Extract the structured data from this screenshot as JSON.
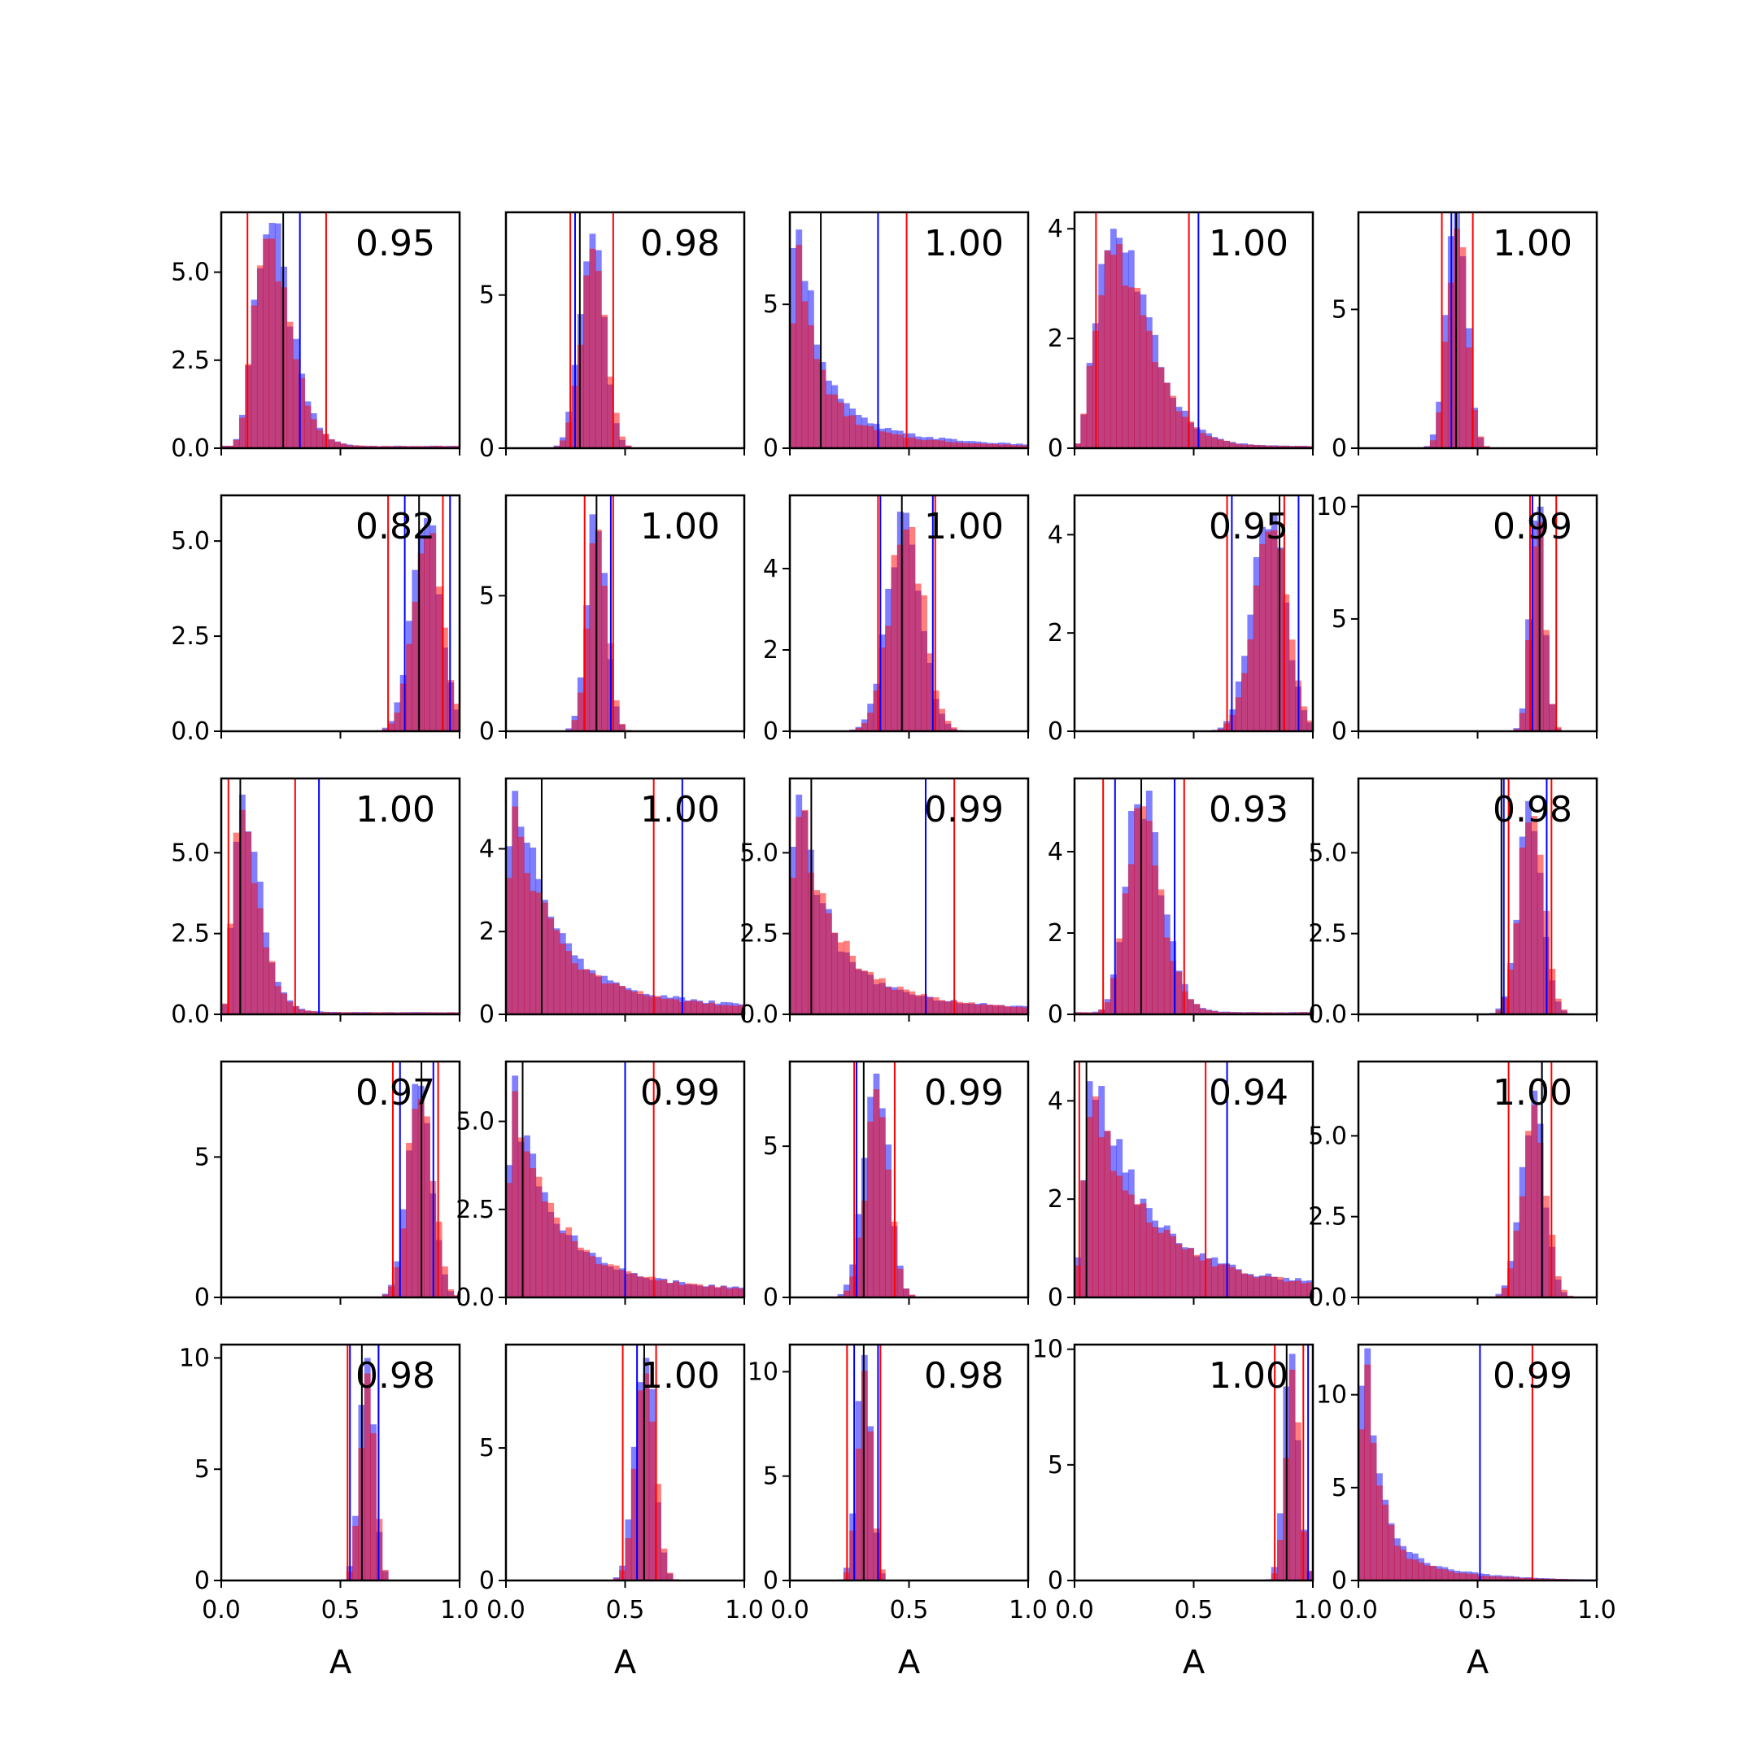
{
  "chart_data": {
    "type": "histogram-grid",
    "rows": 5,
    "cols": 5,
    "xlim": [
      0,
      1
    ],
    "x_ticks": [
      0.0,
      0.5,
      1.0
    ],
    "x_tick_labels": [
      "0.0",
      "0.5",
      "1.0"
    ],
    "xlabel": "A",
    "colors": {
      "blue": "#0000ff",
      "red": "#ff0000",
      "black": "#000000"
    },
    "alpha": 0.5,
    "panels": [
      {
        "score": "0.95",
        "ylim": [
          0,
          6.7
        ],
        "yticks": [
          0,
          2.5,
          5.0
        ],
        "ytick_labels": [
          "0.0",
          "2.5",
          "5.0"
        ],
        "shape": "gamma",
        "mode": 0.2,
        "sd": 0.07,
        "peak": 6.4,
        "lines": {
          "red": [
            0.11,
            0.44
          ],
          "blue": [
            0.33
          ],
          "black": [
            0.26
          ]
        }
      },
      {
        "score": "0.98",
        "ylim": [
          0,
          7.7
        ],
        "yticks": [
          0,
          5
        ],
        "ytick_labels": [
          "0",
          "5"
        ],
        "shape": "normal",
        "mode": 0.36,
        "sd": 0.05,
        "peak": 7.0,
        "lines": {
          "red": [
            0.27,
            0.45
          ],
          "blue": [
            0.29
          ],
          "black": [
            0.31
          ]
        }
      },
      {
        "score": "1.00",
        "ylim": [
          0,
          8.2
        ],
        "yticks": [
          0,
          5
        ],
        "ytick_labels": [
          "0",
          "5"
        ],
        "shape": "decay",
        "mode": 0.02,
        "sd": 0.08,
        "peak": 7.6,
        "lines": {
          "red": [
            0.49
          ],
          "blue": [
            0.37
          ],
          "black": [
            0.13
          ]
        }
      },
      {
        "score": "1.00",
        "ylim": [
          0,
          4.3
        ],
        "yticks": [
          0,
          2,
          4
        ],
        "ytick_labels": [
          "0",
          "2",
          "4"
        ],
        "shape": "gamma",
        "mode": 0.17,
        "sd": 0.1,
        "peak": 4.0,
        "lines": {
          "red": [
            0.09,
            0.48
          ],
          "blue": [
            0.52
          ],
          "black": []
        }
      },
      {
        "score": "1.00",
        "ylim": [
          0,
          8.5
        ],
        "yticks": [
          0,
          5
        ],
        "ytick_labels": [
          "0",
          "5"
        ],
        "shape": "normal",
        "mode": 0.41,
        "sd": 0.04,
        "peak": 8.5,
        "lines": {
          "red": [
            0.35,
            0.48
          ],
          "blue": [
            0.39
          ],
          "black": [
            0.41
          ]
        }
      },
      {
        "score": "0.82",
        "ylim": [
          0,
          6.2
        ],
        "yticks": [
          0,
          2.5,
          5.0
        ],
        "ytick_labels": [
          "0.0",
          "2.5",
          "5.0"
        ],
        "shape": "normal",
        "mode": 0.86,
        "sd": 0.06,
        "peak": 5.6,
        "lines": {
          "red": [
            0.7,
            0.93
          ],
          "blue": [
            0.77,
            0.96
          ],
          "black": [
            0.83
          ]
        }
      },
      {
        "score": "1.00",
        "ylim": [
          0,
          8.7
        ],
        "yticks": [
          0,
          5
        ],
        "ytick_labels": [
          "0",
          "5"
        ],
        "shape": "normal",
        "mode": 0.38,
        "sd": 0.04,
        "peak": 8.0,
        "lines": {
          "red": [
            0.33,
            0.45
          ],
          "blue": [
            0.44
          ],
          "black": [
            0.38
          ]
        }
      },
      {
        "score": "1.00",
        "ylim": [
          0,
          5.8
        ],
        "yticks": [
          0,
          2,
          4
        ],
        "ytick_labels": [
          "0",
          "2",
          "4"
        ],
        "shape": "normal",
        "mode": 0.48,
        "sd": 0.07,
        "peak": 5.4,
        "lines": {
          "red": [
            0.37,
            0.61
          ],
          "blue": [
            0.38,
            0.6
          ],
          "black": [
            0.47
          ]
        }
      },
      {
        "score": "0.95",
        "ylim": [
          0,
          4.8
        ],
        "yticks": [
          0,
          2,
          4
        ],
        "ytick_labels": [
          "0",
          "2",
          "4"
        ],
        "shape": "normal",
        "mode": 0.81,
        "sd": 0.07,
        "peak": 4.4,
        "lines": {
          "red": [
            0.64,
            0.88
          ],
          "blue": [
            0.66,
            0.94
          ],
          "black": [
            0.86
          ]
        }
      },
      {
        "score": "0.99",
        "ylim": [
          0,
          10.5
        ],
        "yticks": [
          0,
          5,
          10
        ],
        "ytick_labels": [
          "0",
          "5",
          "10"
        ],
        "shape": "normal",
        "mode": 0.75,
        "sd": 0.03,
        "peak": 10.0,
        "lines": {
          "red": [
            0.72,
            0.83
          ],
          "blue": [
            0.73
          ],
          "black": [
            0.76
          ]
        }
      },
      {
        "score": "1.00",
        "ylim": [
          0,
          7.3
        ],
        "yticks": [
          0,
          2.5,
          5.0
        ],
        "ytick_labels": [
          "0.0",
          "2.5",
          "5.0"
        ],
        "shape": "gamma",
        "mode": 0.09,
        "sd": 0.05,
        "peak": 6.8,
        "lines": {
          "red": [
            0.03,
            0.31
          ],
          "blue": [
            0.41
          ],
          "black": [
            0.08
          ]
        }
      },
      {
        "score": "1.00",
        "ylim": [
          0,
          5.7
        ],
        "yticks": [
          0,
          2,
          4
        ],
        "ytick_labels": [
          "0",
          "2",
          "4"
        ],
        "shape": "decay",
        "mode": 0.02,
        "sd": 0.14,
        "peak": 5.4,
        "lines": {
          "red": [
            0.62
          ],
          "blue": [
            0.74
          ],
          "black": [
            0.15
          ]
        }
      },
      {
        "score": "0.99",
        "ylim": [
          0,
          7.3
        ],
        "yticks": [
          0.0,
          2.5,
          5.0
        ],
        "ytick_labels": [
          "0.0",
          "2.5",
          "5.0"
        ],
        "shape": "decay",
        "mode": 0.02,
        "sd": 0.12,
        "peak": 6.8,
        "lines": {
          "red": [
            0.69
          ],
          "blue": [
            0.57
          ],
          "black": [
            0.09
          ]
        }
      },
      {
        "score": "0.93",
        "ylim": [
          0,
          5.8
        ],
        "yticks": [
          0,
          2,
          4
        ],
        "ytick_labels": [
          "0",
          "2",
          "4"
        ],
        "shape": "gamma",
        "mode": 0.28,
        "sd": 0.07,
        "peak": 5.5,
        "lines": {
          "red": [
            0.12,
            0.46
          ],
          "blue": [
            0.17,
            0.42
          ],
          "black": [
            0.28
          ]
        }
      },
      {
        "score": "0.98",
        "ylim": [
          0,
          7.3
        ],
        "yticks": [
          0.0,
          2.5,
          5.0
        ],
        "ytick_labels": [
          "0.0",
          "2.5",
          "5.0"
        ],
        "shape": "normal",
        "mode": 0.72,
        "sd": 0.05,
        "peak": 6.6,
        "lines": {
          "red": [
            0.63,
            0.81
          ],
          "blue": [
            0.61,
            0.79
          ],
          "black": [
            0.6
          ]
        }
      },
      {
        "score": "0.97",
        "ylim": [
          0,
          8.4
        ],
        "yticks": [
          0,
          5
        ],
        "ytick_labels": [
          "0",
          "5"
        ],
        "shape": "normal",
        "mode": 0.83,
        "sd": 0.05,
        "peak": 7.6,
        "lines": {
          "red": [
            0.72,
            0.91
          ],
          "blue": [
            0.75,
            0.89
          ],
          "black": [
            0.84
          ]
        }
      },
      {
        "score": "0.99",
        "ylim": [
          0,
          6.7
        ],
        "yticks": [
          0.0,
          2.5,
          5.0
        ],
        "ytick_labels": [
          "0.0",
          "2.5",
          "5.0"
        ],
        "shape": "decay",
        "mode": 0.02,
        "sd": 0.15,
        "peak": 6.3,
        "lines": {
          "red": [
            0.62
          ],
          "blue": [
            0.5
          ],
          "black": [
            0.07
          ]
        }
      },
      {
        "score": "0.99",
        "ylim": [
          0,
          7.8
        ],
        "yticks": [
          0,
          5
        ],
        "ytick_labels": [
          "0",
          "5"
        ],
        "shape": "normal",
        "mode": 0.36,
        "sd": 0.05,
        "peak": 7.4,
        "lines": {
          "red": [
            0.27,
            0.44
          ],
          "blue": [
            0.28
          ],
          "black": [
            0.31
          ]
        }
      },
      {
        "score": "0.94",
        "ylim": [
          0,
          4.8
        ],
        "yticks": [
          0,
          2,
          4
        ],
        "ytick_labels": [
          "0",
          "2",
          "4"
        ],
        "shape": "decay",
        "mode": 0.07,
        "sd": 0.2,
        "peak": 4.4,
        "lines": {
          "red": [
            0.02,
            0.55
          ],
          "blue": [
            0.64
          ],
          "black": [
            0.05
          ]
        }
      },
      {
        "score": "1.00",
        "ylim": [
          0,
          7.3
        ],
        "yticks": [
          0.0,
          2.5,
          5.0
        ],
        "ytick_labels": [
          "0.0",
          "2.5",
          "5.0"
        ],
        "shape": "normal",
        "mode": 0.73,
        "sd": 0.05,
        "peak": 6.4,
        "lines": {
          "red": [
            0.63,
            0.81
          ],
          "blue": [
            0.77
          ],
          "black": [
            0.77
          ]
        }
      },
      {
        "score": "0.98",
        "ylim": [
          0,
          10.6
        ],
        "yticks": [
          0,
          5,
          10
        ],
        "ytick_labels": [
          "0",
          "5",
          "10"
        ],
        "shape": "normal",
        "mode": 0.61,
        "sd": 0.03,
        "peak": 10.0,
        "lines": {
          "red": [
            0.53,
            0.66
          ],
          "blue": [
            0.54,
            0.66
          ],
          "black": [
            0.59
          ]
        }
      },
      {
        "score": "1.00",
        "ylim": [
          0,
          8.9
        ],
        "yticks": [
          0,
          5
        ],
        "ytick_labels": [
          "0",
          "5"
        ],
        "shape": "normal",
        "mode": 0.58,
        "sd": 0.04,
        "peak": 8.4,
        "lines": {
          "red": [
            0.49,
            0.63
          ],
          "blue": [
            0.55
          ],
          "black": [
            0.58
          ]
        }
      },
      {
        "score": "0.98",
        "ylim": [
          0,
          11.3
        ],
        "yticks": [
          0,
          5,
          10
        ],
        "ytick_labels": [
          "0",
          "5",
          "10"
        ],
        "shape": "normal",
        "mode": 0.31,
        "sd": 0.03,
        "peak": 10.8,
        "lines": {
          "red": [
            0.24,
            0.38
          ],
          "blue": [
            0.27,
            0.37
          ],
          "black": [
            0.31
          ]
        }
      },
      {
        "score": "1.00",
        "ylim": [
          0,
          10.2
        ],
        "yticks": [
          0,
          5,
          10
        ],
        "ytick_labels": [
          "0",
          "5",
          "10"
        ],
        "shape": "normal",
        "mode": 0.91,
        "sd": 0.03,
        "peak": 9.8,
        "lines": {
          "red": [
            0.84,
            0.96
          ],
          "blue": [
            0.98
          ],
          "black": [
            0.89
          ]
        }
      },
      {
        "score": "0.99",
        "ylim": [
          0,
          12.7
        ],
        "yticks": [
          0,
          5,
          10
        ],
        "ytick_labels": [
          "0",
          "5",
          "10"
        ],
        "shape": "decay",
        "mode": 0.02,
        "sd": 0.05,
        "peak": 12.5,
        "lines": {
          "red": [
            0.73
          ],
          "blue": [
            0.51
          ],
          "black": []
        }
      }
    ]
  }
}
